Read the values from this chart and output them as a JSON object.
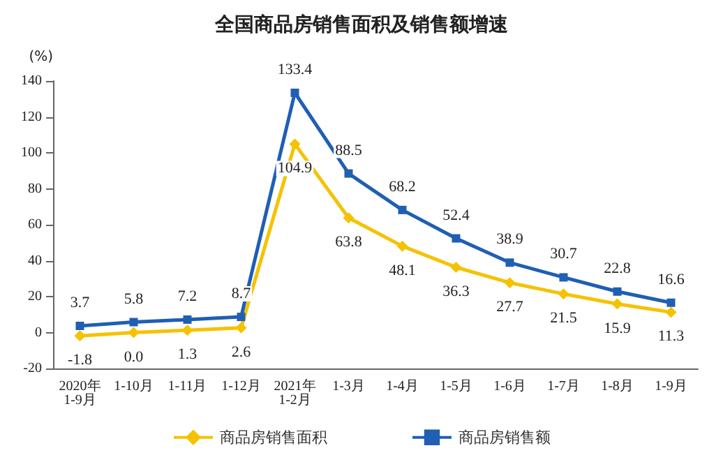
{
  "chart_data": {
    "type": "line",
    "title": "全国商品房销售面积及销售额增速",
    "ylabel": "(%)",
    "categories": [
      "2020年\n1-9月",
      "1-10月",
      "1-11月",
      "1-12月",
      "2021年\n1-2月",
      "1-3月",
      "1-4月",
      "1-5月",
      "1-6月",
      "1-7月",
      "1-8月",
      "1-9月"
    ],
    "series": [
      {
        "name": "商品房销售面积",
        "color": "#f5c200",
        "marker": "diamond",
        "values": [
          -1.8,
          0.0,
          1.3,
          2.6,
          104.9,
          63.8,
          48.1,
          36.3,
          27.7,
          21.5,
          15.9,
          11.3
        ],
        "value_labels": [
          "-1.8",
          "0.0",
          "1.3",
          "2.6",
          "104.9",
          "63.8",
          "48.1",
          "36.3",
          "27.7",
          "21.5",
          "15.9",
          "11.3"
        ]
      },
      {
        "name": "商品房销售额",
        "color": "#1f5fb4",
        "marker": "square",
        "values": [
          3.7,
          5.8,
          7.2,
          8.7,
          133.4,
          88.5,
          68.2,
          52.4,
          38.9,
          30.7,
          22.8,
          16.6
        ]
      }
    ],
    "ylim": [
      -20,
      140
    ],
    "yticks": [
      -20,
      0,
      20,
      40,
      60,
      80,
      100,
      120,
      140
    ],
    "grid": false,
    "legend": "bottom",
    "data_labels": true
  }
}
